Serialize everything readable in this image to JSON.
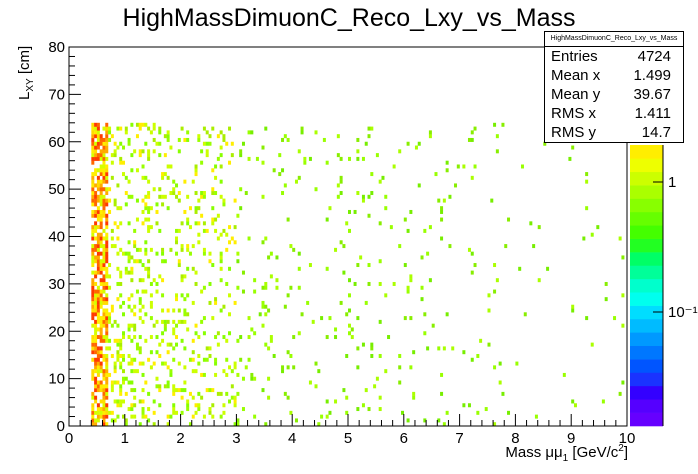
{
  "chart_data": {
    "type": "heatmap",
    "title": "HighMassDimuonC_Reco_Lxy_vs_Mass",
    "xlabel": "Mass μμ₁ [GeV/c²]",
    "ylabel": "L_XY [cm]",
    "xlim": [
      0,
      10
    ],
    "ylim": [
      0,
      80
    ],
    "x_ticks": [
      "0",
      "1",
      "2",
      "3",
      "4",
      "5",
      "6",
      "7",
      "8",
      "9",
      "10"
    ],
    "y_ticks": [
      "0",
      "10",
      "20",
      "30",
      "40",
      "50",
      "60",
      "70",
      "80"
    ],
    "z_scale": "log",
    "z_tick_labels": [
      "1",
      "10⁻¹"
    ],
    "density_regions": [
      {
        "x_range": [
          0.4,
          0.7
        ],
        "y_range": [
          0,
          64
        ],
        "level": "high"
      },
      {
        "x_range": [
          0.7,
          3.0
        ],
        "y_range": [
          0,
          64
        ],
        "level": "medium"
      },
      {
        "x_range": [
          3.0,
          10.0
        ],
        "y_range": [
          0,
          64
        ],
        "level": "low"
      }
    ],
    "stats": {
      "name": "HighMassDimuonC_Reco_Lxy_vs_Mass",
      "entries": {
        "label": "Entries",
        "value": "4724"
      },
      "mean_x": {
        "label": "Mean x",
        "value": "1.499"
      },
      "mean_y": {
        "label": "Mean y",
        "value": "39.67"
      },
      "rms_x": {
        "label": "RMS x",
        "value": "1.411"
      },
      "rms_y": {
        "label": "RMS y",
        "value": "14.7"
      }
    }
  }
}
